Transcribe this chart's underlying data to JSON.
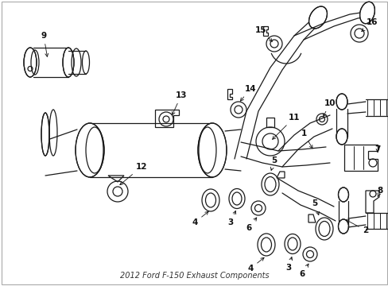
{
  "subtitle": "2012 Ford F-150 Exhaust Components",
  "bg_color": "#ffffff",
  "line_color": "#1a1a1a",
  "lw": 0.9,
  "fig_w": 4.89,
  "fig_h": 3.6,
  "dpi": 100
}
